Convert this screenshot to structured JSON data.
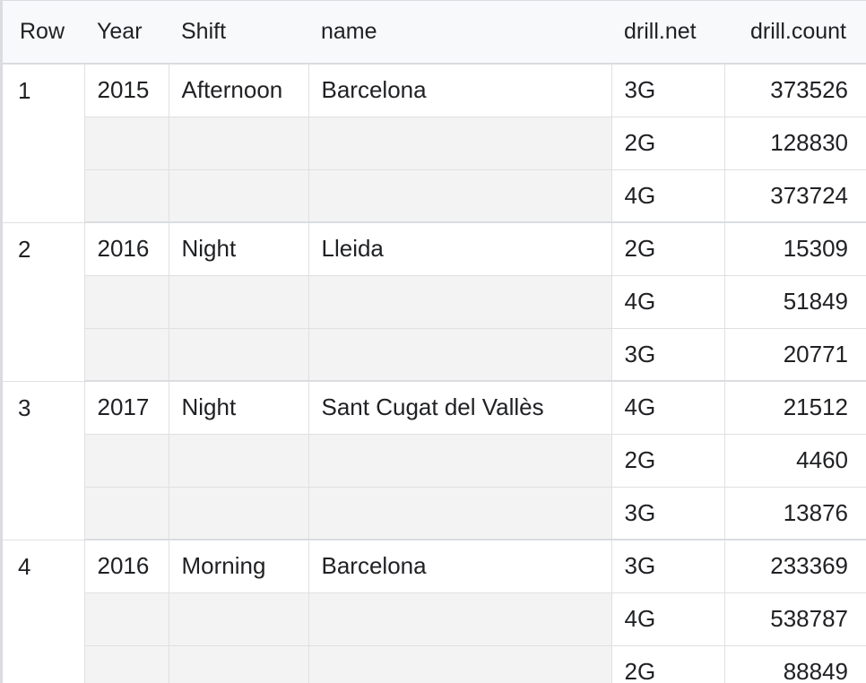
{
  "table": {
    "headers": {
      "row": "Row",
      "year": "Year",
      "shift": "Shift",
      "name": "name",
      "drill_net": "drill.net",
      "drill_count": "drill.count"
    },
    "rows": [
      {
        "row": "1",
        "year": "2015",
        "shift": "Afternoon",
        "name": "Barcelona",
        "drill": [
          {
            "net": "3G",
            "count": "373526"
          },
          {
            "net": "2G",
            "count": "128830"
          },
          {
            "net": "4G",
            "count": "373724"
          }
        ]
      },
      {
        "row": "2",
        "year": "2016",
        "shift": "Night",
        "name": "Lleida",
        "drill": [
          {
            "net": "2G",
            "count": "15309"
          },
          {
            "net": "4G",
            "count": "51849"
          },
          {
            "net": "3G",
            "count": "20771"
          }
        ]
      },
      {
        "row": "3",
        "year": "2017",
        "shift": "Night",
        "name": "Sant Cugat del Vallès",
        "drill": [
          {
            "net": "4G",
            "count": "21512"
          },
          {
            "net": "2G",
            "count": "4460"
          },
          {
            "net": "3G",
            "count": "13876"
          }
        ]
      },
      {
        "row": "4",
        "year": "2016",
        "shift": "Morning",
        "name": "Barcelona",
        "drill": [
          {
            "net": "3G",
            "count": "233369"
          },
          {
            "net": "4G",
            "count": "538787"
          },
          {
            "net": "2G",
            "count": "88849"
          }
        ]
      }
    ]
  }
}
